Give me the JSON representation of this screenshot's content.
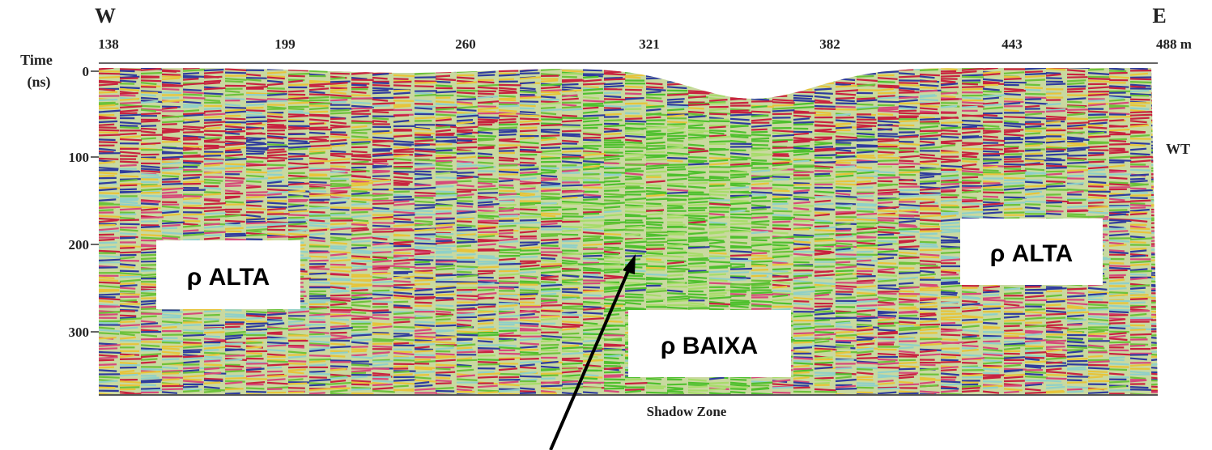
{
  "figure": {
    "west_label": "W",
    "east_label": "E",
    "y_axis_label": [
      "Time",
      "(ns)"
    ],
    "x_ticks": [
      "138",
      "199",
      "260",
      "321",
      "382",
      "443",
      "488 m"
    ],
    "y_ticks": [
      "0",
      "100",
      "200",
      "300"
    ],
    "water_table_label": "WT",
    "caption": "Shadow Zone",
    "annotations": [
      "ρ ALTA",
      "ρ ALTA",
      "ρ BAIXA"
    ]
  }
}
